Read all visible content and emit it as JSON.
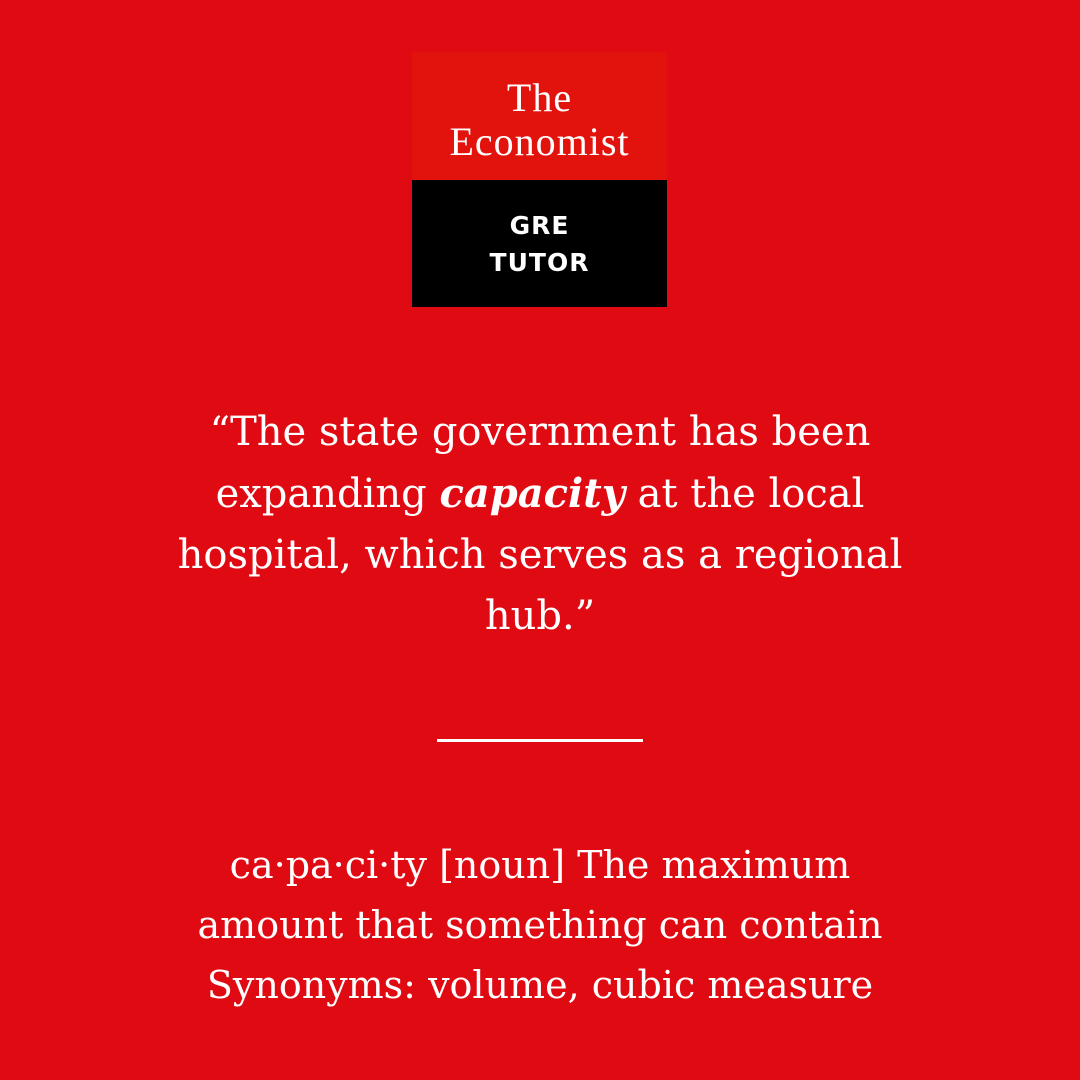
{
  "logo": {
    "line1": "The",
    "line2": "Economist",
    "tutor_line1": "GRE",
    "tutor_line2": "TUTOR"
  },
  "quote": {
    "before": "“The state government has been expanding ",
    "word": "capacity",
    "after": " at the local hospital, which serves as a regional hub.”"
  },
  "definition": {
    "line1": "ca·pa·ci·ty [noun] The maximum",
    "line2": "amount that something can contain",
    "line3": "Synonyms: volume, cubic measure"
  },
  "colors": {
    "background": "#e00a13",
    "logo_top": "#e2120d",
    "logo_bottom": "#000000",
    "text": "#ffffff"
  }
}
